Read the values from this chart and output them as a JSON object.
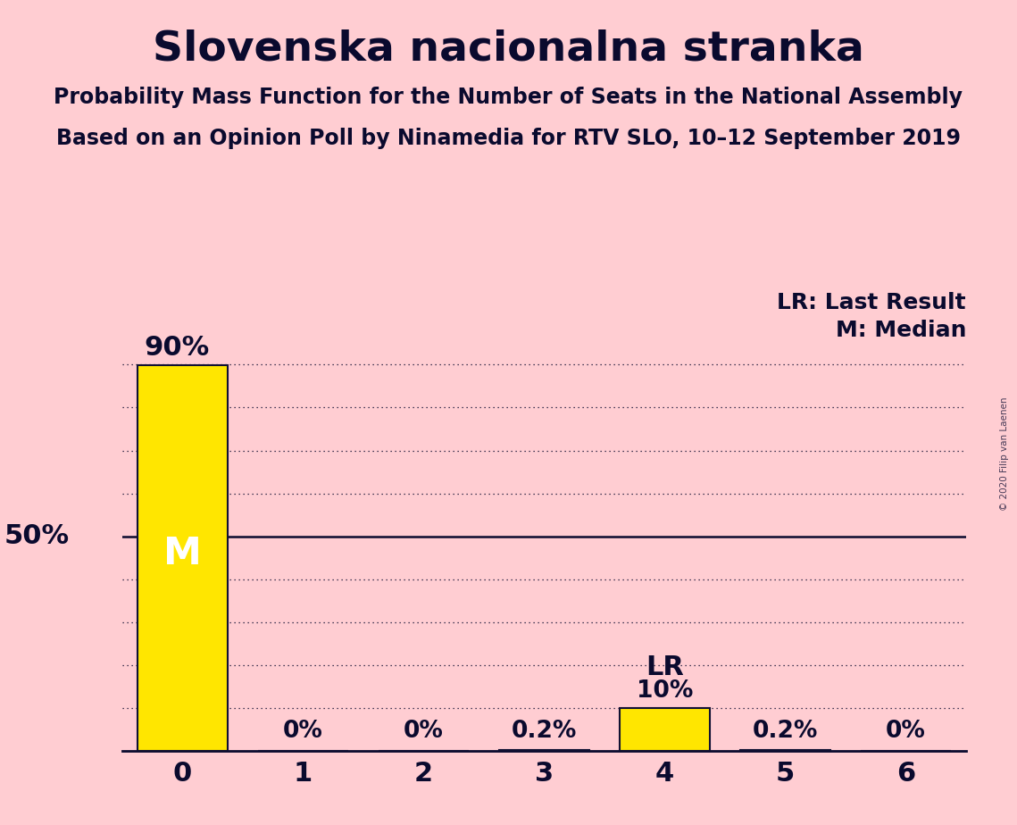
{
  "title": "Slovenska nacionalna stranka",
  "subtitle1": "Probability Mass Function for the Number of Seats in the National Assembly",
  "subtitle2": "Based on an Opinion Poll by Ninamedia for RTV SLO, 10–12 September 2019",
  "copyright": "© 2020 Filip van Laenen",
  "categories": [
    0,
    1,
    2,
    3,
    4,
    5,
    6
  ],
  "values": [
    0.898,
    0.0,
    0.0,
    0.002,
    0.1,
    0.002,
    0.0
  ],
  "value_labels": [
    "90%",
    "0%",
    "0%",
    "0.2%",
    "10%",
    "0.2%",
    "0%"
  ],
  "bar_color": "#FFE600",
  "bar_edge_color": "#111133",
  "background_color": "#FFCDD2",
  "text_color": "#0a0a2e",
  "median_seat": 0,
  "lr_seat": 4,
  "ylim": [
    0,
    1.0
  ],
  "xlim": [
    -0.5,
    6.5
  ],
  "gridline_positions": [
    0.1,
    0.2,
    0.3,
    0.4,
    0.5,
    0.6,
    0.7,
    0.8,
    0.9
  ],
  "title_fontsize": 34,
  "subtitle_fontsize": 17,
  "label_fontsize": 19,
  "tick_fontsize": 22,
  "annot_fontsize": 19,
  "bar_width": 0.75
}
